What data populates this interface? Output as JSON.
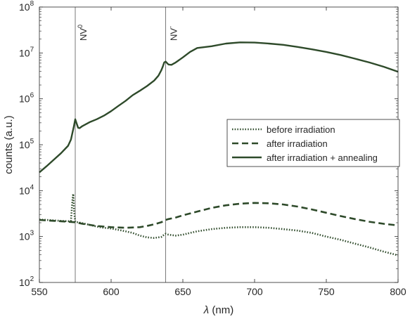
{
  "chart_data": {
    "type": "line",
    "title": "",
    "xlabel": "λ (nm)",
    "ylabel": "counts (a.u.)",
    "xlim": [
      550,
      800
    ],
    "ylim_log10": [
      2,
      8
    ],
    "y_scale": "log",
    "grid": false,
    "legend_position": "center-right",
    "x_ticks": [
      "550",
      "600",
      "650",
      "700",
      "750",
      "800"
    ],
    "y_ticks": [
      {
        "base": "10",
        "exp": "2"
      },
      {
        "base": "10",
        "exp": "3"
      },
      {
        "base": "10",
        "exp": "4"
      },
      {
        "base": "10",
        "exp": "5"
      },
      {
        "base": "10",
        "exp": "6"
      },
      {
        "base": "10",
        "exp": "7"
      },
      {
        "base": "10",
        "exp": "8"
      }
    ],
    "vlines": [
      {
        "x": 575,
        "label": "NV",
        "sup": "0"
      },
      {
        "x": 638,
        "label": "NV",
        "sup": "-"
      }
    ],
    "color": "#2e4a2a",
    "series": [
      {
        "name": "before irradiation",
        "style": "dotted",
        "x": [
          550,
          555,
          560,
          565,
          570,
          572,
          573,
          573.6,
          574.2,
          575,
          580,
          585,
          590,
          595,
          600,
          605,
          610,
          615,
          620,
          625,
          630,
          635,
          637,
          638,
          640,
          645,
          650,
          655,
          660,
          670,
          680,
          690,
          700,
          710,
          720,
          730,
          740,
          750,
          760,
          770,
          780,
          790,
          800
        ],
        "y": [
          2350,
          2300,
          2250,
          2200,
          2150,
          2200,
          6000,
          8500,
          3500,
          2100,
          1950,
          1800,
          1650,
          1550,
          1500,
          1400,
          1300,
          1200,
          1050,
          960,
          930,
          980,
          1100,
          1150,
          1100,
          1050,
          1100,
          1200,
          1300,
          1450,
          1550,
          1600,
          1600,
          1550,
          1450,
          1350,
          1200,
          1000,
          850,
          700,
          580,
          470,
          390
        ]
      },
      {
        "name": "after irradiation",
        "style": "dashed",
        "x": [
          550,
          555,
          560,
          565,
          570,
          575,
          580,
          585,
          590,
          600,
          610,
          620,
          625,
          630,
          635,
          638,
          640,
          645,
          650,
          660,
          670,
          680,
          690,
          700,
          710,
          720,
          730,
          740,
          750,
          760,
          770,
          780,
          790,
          800
        ],
        "y": [
          2300,
          2250,
          2200,
          2150,
          2100,
          2050,
          1900,
          1800,
          1700,
          1600,
          1550,
          1600,
          1700,
          1850,
          2050,
          2300,
          2400,
          2600,
          2900,
          3500,
          4200,
          4800,
          5200,
          5400,
          5300,
          5000,
          4500,
          3900,
          3300,
          2800,
          2400,
          2100,
          1900,
          1750
        ]
      },
      {
        "name": "after irradiation + annealing",
        "style": "solid",
        "x": [
          550,
          555,
          560,
          565,
          570,
          572,
          574,
          575,
          576,
          577,
          578,
          580,
          585,
          590,
          595,
          600,
          605,
          610,
          615,
          620,
          625,
          630,
          633,
          635,
          636,
          637,
          638,
          639,
          640,
          642,
          645,
          650,
          655,
          660,
          670,
          680,
          690,
          700,
          710,
          720,
          730,
          740,
          750,
          760,
          770,
          780,
          790,
          800
        ],
        "y": [
          25000,
          34000,
          47000,
          65000,
          95000,
          130000,
          250000,
          360000,
          290000,
          235000,
          230000,
          255000,
          310000,
          360000,
          430000,
          540000,
          700000,
          900000,
          1200000,
          1500000,
          1900000,
          2500000,
          3200000,
          4200000,
          5000000,
          6200000,
          6500000,
          6000000,
          5600000,
          5500000,
          6200000,
          8000000,
          10500000,
          12800000,
          14000000,
          16000000,
          17000000,
          16800000,
          16000000,
          15000000,
          13500000,
          12000000,
          10500000,
          9000000,
          7500000,
          6200000,
          5000000,
          3900000
        ]
      }
    ]
  }
}
